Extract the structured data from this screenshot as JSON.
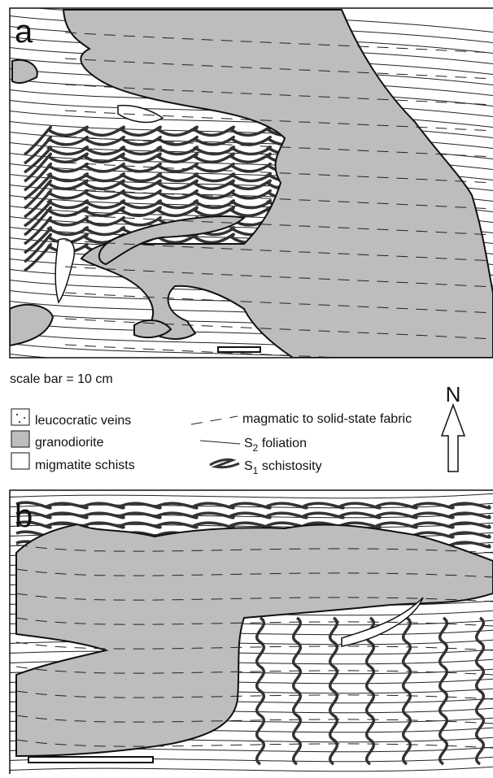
{
  "panels": [
    {
      "label": "a"
    },
    {
      "label": "b"
    }
  ],
  "scale_note": "scale bar = 10 cm",
  "legend": {
    "units": [
      "leucocratic veins",
      "granodiorite",
      "migmatite schists"
    ],
    "structures": [
      {
        "text": "magmatic to solid-state fabric"
      },
      {
        "symbol": "S",
        "subscript": "2",
        "text": "foliation"
      },
      {
        "symbol": "S",
        "subscript": "1",
        "text": "schistosity"
      }
    ]
  },
  "north": "N"
}
